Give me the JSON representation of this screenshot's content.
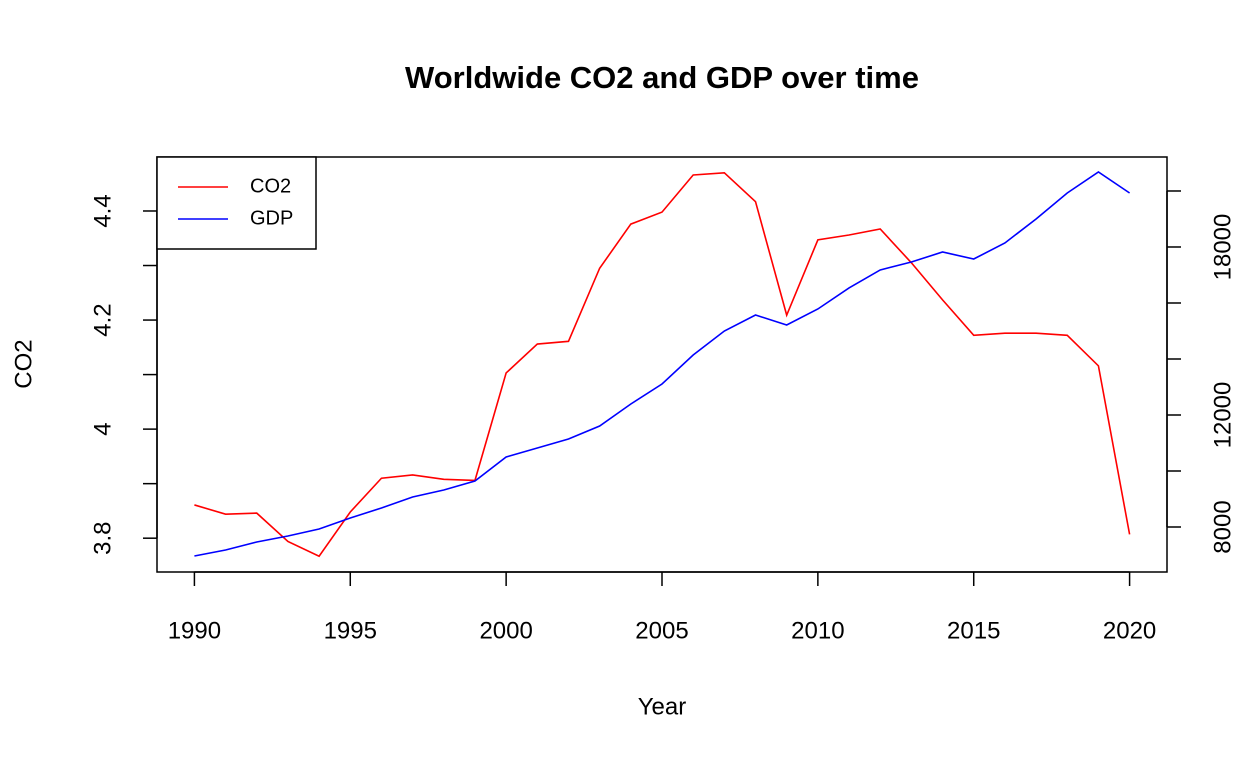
{
  "chart_data": {
    "type": "line",
    "title": "Worldwide CO2 and GDP over time",
    "x_label": "Year",
    "y_label": "CO2",
    "x": [
      1990,
      1991,
      1992,
      1993,
      1994,
      1995,
      1996,
      1997,
      1998,
      1999,
      2000,
      2001,
      2002,
      2003,
      2004,
      2005,
      2006,
      2007,
      2008,
      2009,
      2010,
      2011,
      2012,
      2013,
      2014,
      2015,
      2016,
      2017,
      2018,
      2019,
      2020
    ],
    "series": [
      {
        "name": "CO2",
        "color": "#ff0000",
        "values": [
          3.861,
          3.844,
          3.846,
          3.794,
          3.767,
          3.848,
          3.91,
          3.916,
          3.908,
          3.906,
          4.103,
          4.156,
          4.161,
          4.295,
          4.376,
          4.398,
          4.466,
          4.47,
          4.417,
          4.209,
          4.347,
          4.356,
          4.367,
          4.305,
          4.237,
          4.172,
          4.176,
          4.176,
          4.172,
          4.116,
          3.807
        ]
      },
      {
        "name": "GDP",
        "color": "#0000ff",
        "axis": "y2",
        "values": [
          6964,
          7179,
          7464,
          7679,
          7929,
          8321,
          8679,
          9071,
          9321,
          9643,
          10500,
          10821,
          11143,
          11607,
          12393,
          13107,
          14143,
          15000,
          15571,
          15214,
          15786,
          16536,
          17179,
          17464,
          17821,
          17571,
          18143,
          19000,
          19929,
          20679,
          19929
        ]
      }
    ],
    "xlim": [
      1988.8,
      2021.2
    ],
    "xticks": [
      1990,
      1995,
      2000,
      2005,
      2010,
      2015,
      2020
    ],
    "ylim": [
      3.738,
      4.499
    ],
    "yticks": [
      3.8,
      {
        "value": 3.9,
        "label": ""
      },
      4.0,
      {
        "value": 4.1,
        "label": ""
      },
      4.2,
      {
        "value": 4.3,
        "label": ""
      },
      4.4
    ],
    "y2lim": [
      6393,
      21214
    ],
    "y2ticks": [
      8000,
      10000,
      12000,
      14000,
      16000,
      18000,
      20000
    ],
    "y2labels": [
      8000,
      12000,
      18000
    ],
    "legend": "top-left"
  }
}
